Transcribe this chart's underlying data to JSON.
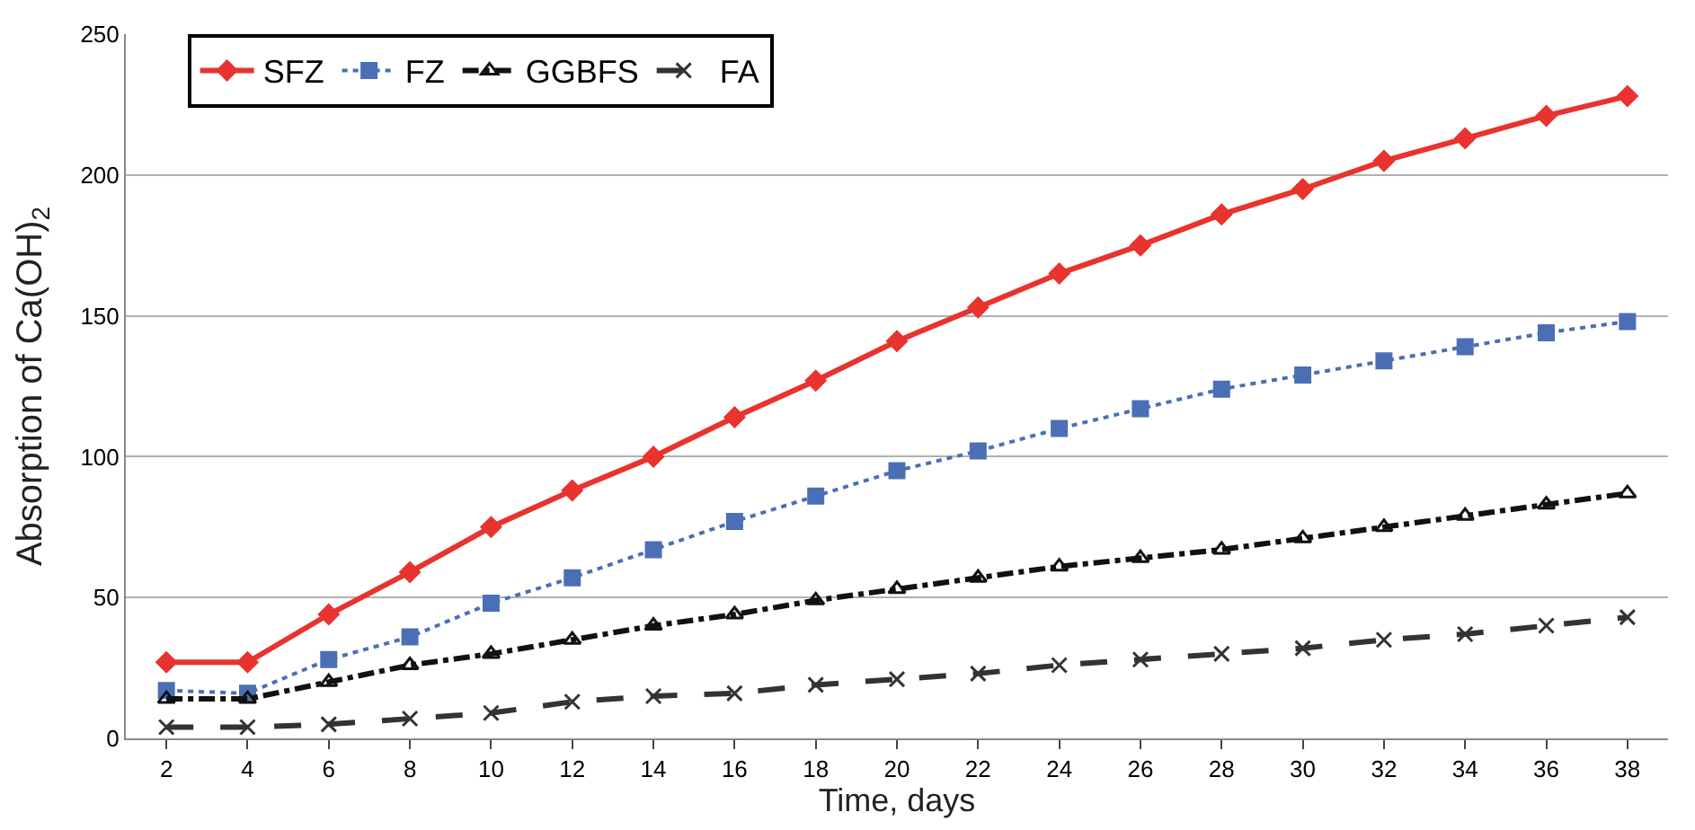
{
  "chart_data": {
    "type": "line",
    "xlabel": "Time, days",
    "ylabel": "Absorption of Ca(OH)$_{2}$",
    "x": [
      2,
      4,
      6,
      8,
      10,
      12,
      14,
      16,
      18,
      20,
      22,
      24,
      26,
      28,
      30,
      32,
      34,
      36,
      38
    ],
    "xlim": [
      1,
      39
    ],
    "xticks": [
      2,
      4,
      6,
      8,
      10,
      12,
      14,
      16,
      18,
      20,
      22,
      24,
      26,
      28,
      30,
      32,
      34,
      36,
      38
    ],
    "ylim": [
      0,
      250
    ],
    "yticks": [
      0,
      50,
      100,
      150,
      200,
      250
    ],
    "grid": "y",
    "legend": "top left",
    "series": [
      {
        "name": "SFZ",
        "color": "#e8332f",
        "marker": "diamond",
        "line_style": "solid",
        "values": [
          27,
          27,
          44,
          59,
          75,
          88,
          100,
          114,
          127,
          141,
          153,
          165,
          175,
          186,
          195,
          205,
          213,
          221,
          228
        ]
      },
      {
        "name": "FZ",
        "color": "#4a6fb5",
        "marker": "square",
        "line_style": "dotted",
        "values": [
          17,
          16,
          28,
          36,
          48,
          57,
          67,
          77,
          86,
          95,
          102,
          110,
          117,
          124,
          129,
          134,
          139,
          144,
          148
        ]
      },
      {
        "name": "GGBFS",
        "color": "#111111",
        "marker": "triangle",
        "line_style": "dashdot",
        "values": [
          14,
          14,
          20,
          26,
          30,
          35,
          40,
          44,
          49,
          53,
          57,
          61,
          64,
          67,
          71,
          75,
          79,
          83,
          87
        ]
      },
      {
        "name": "FA",
        "color": "#333333",
        "marker": "cross",
        "line_style": "dashed",
        "values": [
          4,
          4,
          5,
          7,
          9,
          13,
          15,
          16,
          19,
          21,
          23,
          26,
          28,
          30,
          32,
          35,
          37,
          40,
          43
        ]
      }
    ]
  }
}
